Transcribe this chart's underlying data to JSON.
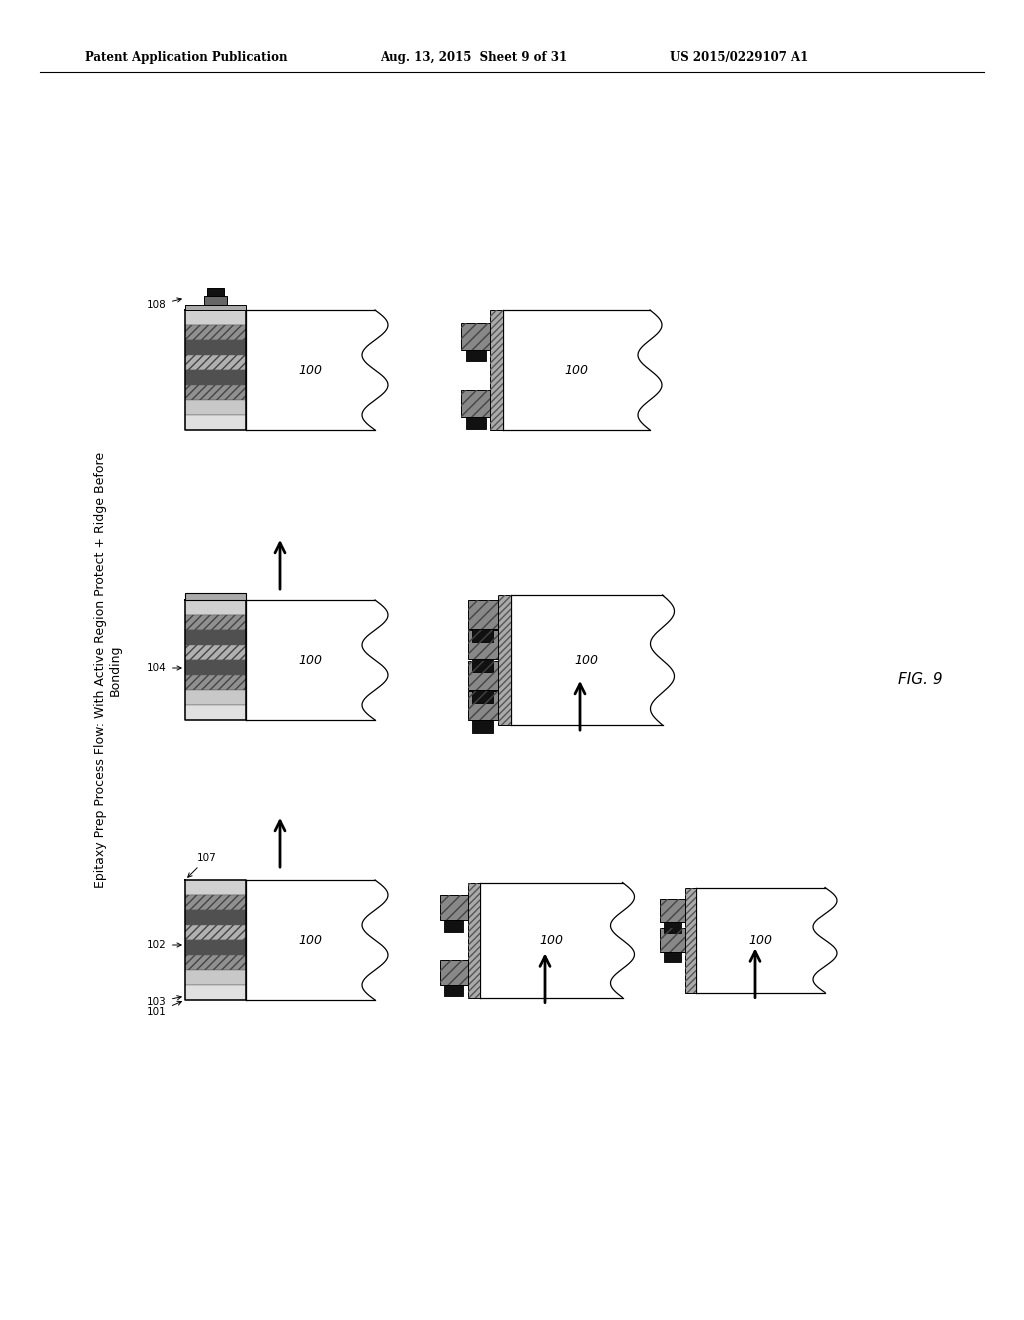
{
  "header_left": "Patent Application Publication",
  "header_middle": "Aug. 13, 2015  Sheet 9 of 31",
  "header_right": "US 2015/0229107 A1",
  "fig_label": "FIG. 9",
  "title_line1": "Epitaxy Prep Process Flow: With Active Region Protect + Ridge Before",
  "title_line2": "Bonding",
  "bg_color": "#ffffff",
  "line_color": "#000000",
  "text_color": "#000000"
}
